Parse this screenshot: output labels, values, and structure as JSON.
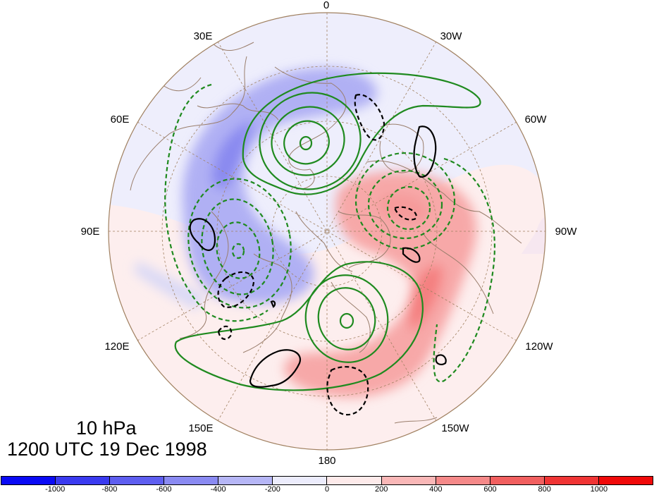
{
  "map": {
    "projection": "north polar stereographic",
    "caption_level": "10 hPa",
    "caption_time": "1200 UTC 19 Dec 1998",
    "longitude_labels": [
      "0",
      "30E",
      "30W",
      "60E",
      "60W",
      "90E",
      "90W",
      "120E",
      "120W",
      "150E",
      "150W",
      "180"
    ],
    "colors": {
      "coastline": "#9a7e6c",
      "graticule": "#a08060",
      "green_contour": "#1f8a1f",
      "black_contour": "#000000",
      "background_positive": "#fdeeee",
      "background_negative": "#ececfb"
    }
  },
  "colorbar": {
    "tick_labels": [
      "-1000",
      "-800",
      "-600",
      "-400",
      "-200",
      "0",
      "200",
      "400",
      "600",
      "800",
      "1000"
    ],
    "segment_colors": [
      "#0a0af5",
      "#3a3af0",
      "#5e5ef0",
      "#8a8af2",
      "#b6b6f6",
      "#ececfc",
      "#fdeaea",
      "#f9b7b7",
      "#f58989",
      "#f15f5f",
      "#f03434",
      "#f00a0a"
    ]
  }
}
